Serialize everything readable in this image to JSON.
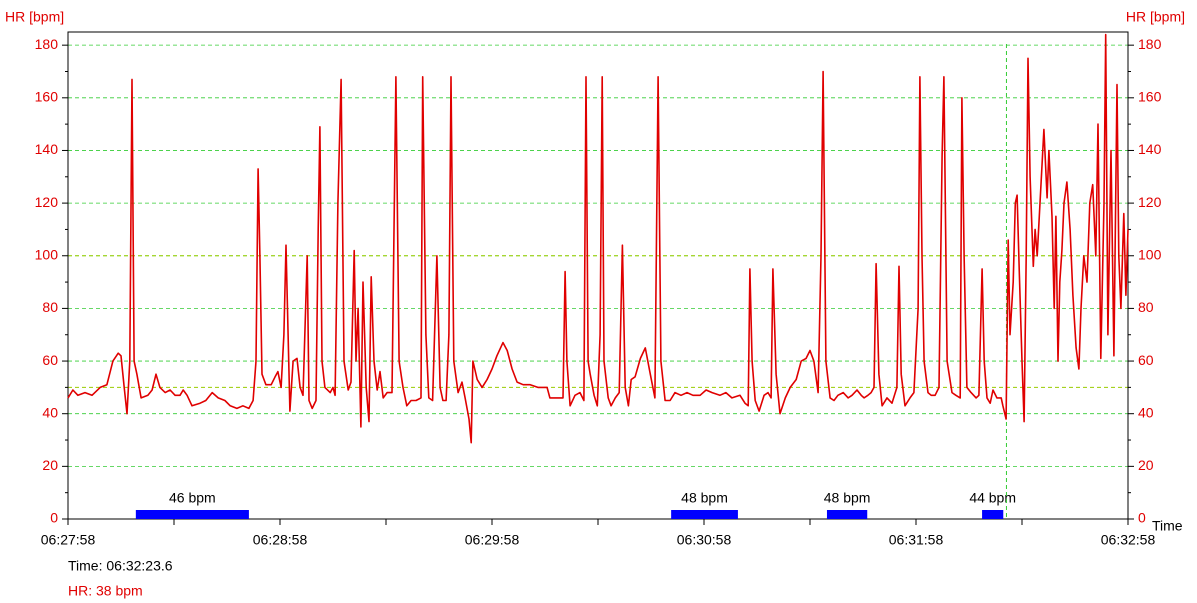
{
  "chart_data": {
    "type": "line",
    "y_label": "HR [bpm]",
    "y2_label": "HR [bpm]",
    "x_label": "Time",
    "xlim": [
      0,
      300
    ],
    "ylim": [
      0,
      185
    ],
    "yticks": [
      0,
      20,
      40,
      60,
      80,
      100,
      120,
      140,
      160,
      180
    ],
    "xticks": [
      {
        "value": 0,
        "label": "06:27:58"
      },
      {
        "value": 60,
        "label": "06:28:58"
      },
      {
        "value": 120,
        "label": "06:29:58"
      },
      {
        "value": 180,
        "label": "06:30:58"
      },
      {
        "value": 240,
        "label": "06:31:58"
      },
      {
        "value": 300,
        "label": "06:32:58"
      }
    ],
    "grid": true,
    "grid_color": "#33cc33",
    "reference_lines": [
      50,
      100
    ],
    "reference_color": "#99cc00",
    "cursor_x": 265.6,
    "cursor_color": "#33cc33",
    "low_hr_color": "#0000ff",
    "low_hr_segments": [
      {
        "start": 19.2,
        "end": 51.2,
        "label": "46 bpm"
      },
      {
        "start": 170.7,
        "end": 189.6,
        "label": "48 bpm"
      },
      {
        "start": 214.8,
        "end": 226.2,
        "label": "48 bpm"
      },
      {
        "start": 258.7,
        "end": 264.7,
        "label": "44 bpm"
      }
    ],
    "readout": {
      "time": "Time: 06:32:23.6",
      "hr": "HR: 38 bpm"
    },
    "x": [
      0,
      1.4,
      2.8,
      4.8,
      6.8,
      9.1,
      11,
      12.7,
      14.2,
      15,
      15.9,
      16.7,
      17.5,
      18.1,
      18.7,
      19.5,
      20.7,
      22.6,
      23.8,
      24.9,
      26,
      27.5,
      28.9,
      30.3,
      31.7,
      32.6,
      33.7,
      35.1,
      37.4,
      39,
      40.8,
      42.5,
      44.4,
      45.9,
      47.8,
      49.5,
      51.2,
      52.4,
      53.2,
      53.8,
      54.3,
      54.9,
      56,
      57.5,
      58.6,
      59.4,
      60.3,
      61.1,
      61.7,
      62.3,
      62.8,
      63.7,
      64.8,
      65.7,
      66.5,
      67.7,
      68.2,
      69.1,
      70.2,
      70.8,
      71.3,
      71.9,
      72.7,
      74.2,
      75,
      75.6,
      76.4,
      77.3,
      78.1,
      79.3,
      80.1,
      81,
      81.5,
      82.1,
      82.9,
      83.5,
      84.4,
      85.2,
      85.8,
      86.6,
      87.5,
      88.3,
      89.2,
      90.3,
      91.7,
      92.8,
      93.7,
      94.8,
      95.9,
      97.1,
      98.5,
      99.9,
      100.4,
      101.3,
      102.1,
      103.2,
      104.4,
      105.3,
      106.1,
      107,
      107.8,
      108.4,
      109.2,
      110.4,
      111.5,
      112.4,
      113.5,
      114.1,
      114.6,
      115.8,
      117.2,
      118.6,
      120,
      121.4,
      123.1,
      124.3,
      125.7,
      127.1,
      128.8,
      130.8,
      133,
      135.6,
      136.4,
      138.6,
      140.1,
      140.7,
      141.2,
      142.1,
      143.5,
      144.9,
      146,
      146.6,
      147.2,
      147.8,
      148.9,
      149.8,
      150.6,
      151.2,
      151.7,
      152.9,
      153.7,
      154.9,
      156,
      156.9,
      157.7,
      158.6,
      159.4,
      160.5,
      162,
      163.4,
      164.8,
      166.1,
      167,
      167.8,
      169,
      170.4,
      171.8,
      173.5,
      175.2,
      176.9,
      178.9,
      180.6,
      182.3,
      184.5,
      186.2,
      187.9,
      190.2,
      191.6,
      192.5,
      193,
      193.6,
      194.5,
      195.6,
      197,
      198.1,
      199,
      199.5,
      200.4,
      201.5,
      203,
      204.4,
      206.1,
      207.5,
      208.9,
      210,
      211.1,
      212.3,
      213.1,
      213.7,
      214.5,
      215.7,
      216.8,
      217.9,
      219.4,
      220.8,
      221.9,
      223.3,
      224.5,
      225.3,
      226.4,
      227.3,
      228.1,
      228.7,
      229.5,
      230.4,
      231.8,
      233.2,
      234.6,
      235.2,
      235.8,
      236.9,
      238.3,
      239.4,
      240.6,
      241.1,
      241.7,
      242.3,
      243.4,
      244.3,
      245.4,
      246.5,
      247.4,
      247.9,
      248.8,
      250.2,
      251.3,
      252.5,
      253,
      253.6,
      254.4,
      255.6,
      257,
      257.8,
      258.7,
      259.3,
      260.1,
      261,
      261.8,
      262.9,
      264.1,
      264.6,
      265.5,
      266.1,
      266.6,
      267.5,
      268.1,
      268.6,
      269.2,
      270,
      270.6,
      271.2,
      271.7,
      272.3,
      273.2,
      273.7,
      274.3,
      275.1,
      275.7,
      276.2,
      277.1,
      277.6,
      278.5,
      279.1,
      279.6,
      280.2,
      280.7,
      281.3,
      281.9,
      282.7,
      283.6,
      284.4,
      285.3,
      286.1,
      286.7,
      287.5,
      288.4,
      289.2,
      290,
      290.9,
      291.5,
      292.3,
      293.2,
      293.7,
      294.3,
      295.2,
      296,
      296.9,
      297.4,
      298,
      298.8,
      299.4,
      300
    ],
    "series": [
      {
        "name": "HR",
        "color": "#e00000",
        "values": [
          46,
          49,
          47,
          48,
          47,
          50,
          51,
          60,
          63,
          62,
          50,
          40,
          60,
          167,
          60,
          55,
          46,
          47,
          49,
          55,
          50,
          48,
          49,
          47,
          47,
          49,
          47,
          43,
          44,
          45,
          48,
          46,
          45,
          43,
          42,
          43,
          42,
          45,
          60,
          133,
          100,
          55,
          51,
          51,
          54,
          56,
          50,
          70,
          104,
          70,
          41,
          60,
          61,
          50,
          47,
          100,
          45,
          42,
          45,
          110,
          149,
          60,
          50,
          48,
          50,
          47,
          120,
          167,
          60,
          49,
          52,
          102,
          60,
          80,
          35,
          90,
          50,
          37,
          92,
          60,
          49,
          56,
          46,
          48,
          48,
          168,
          60,
          50,
          43,
          45,
          45,
          46,
          168,
          70,
          46,
          45,
          100,
          50,
          45,
          45,
          70,
          168,
          60,
          48,
          52,
          46,
          38,
          29,
          60,
          53,
          50,
          53,
          57,
          62,
          67,
          64,
          57,
          52,
          51,
          51,
          50,
          50,
          46,
          46,
          46,
          94,
          60,
          43,
          47,
          48,
          45,
          168,
          60,
          55,
          47,
          43,
          70,
          168,
          60,
          46,
          43,
          46,
          48,
          104,
          50,
          43,
          53,
          54,
          61,
          65,
          55,
          46,
          168,
          60,
          45,
          45,
          48,
          47,
          48,
          47,
          47,
          49,
          48,
          47,
          48,
          46,
          47,
          44,
          43,
          95,
          60,
          45,
          41,
          47,
          48,
          46,
          95,
          55,
          40,
          46,
          50,
          53,
          60,
          61,
          64,
          60,
          48,
          100,
          170,
          60,
          46,
          45,
          47,
          48,
          46,
          47,
          49,
          47,
          46,
          47,
          48,
          50,
          97,
          55,
          43,
          46,
          44,
          50,
          96,
          55,
          43,
          46,
          48,
          80,
          168,
          100,
          60,
          48,
          47,
          47,
          50,
          138,
          168,
          60,
          48,
          47,
          46,
          160,
          100,
          50,
          48,
          46,
          47,
          95,
          60,
          46,
          44,
          49,
          46,
          46,
          43,
          38,
          106,
          70,
          90,
          120,
          123,
          95,
          60,
          37,
          100,
          175,
          130,
          96,
          110,
          100,
          120,
          135,
          148,
          122,
          140,
          115,
          80,
          115,
          60,
          90,
          102,
          120,
          128,
          110,
          85,
          65,
          57,
          80,
          100,
          90,
          120,
          127,
          100,
          150,
          61,
          120,
          184,
          70,
          140,
          62,
          165,
          100,
          80,
          116,
          85,
          110
        ]
      }
    ]
  }
}
